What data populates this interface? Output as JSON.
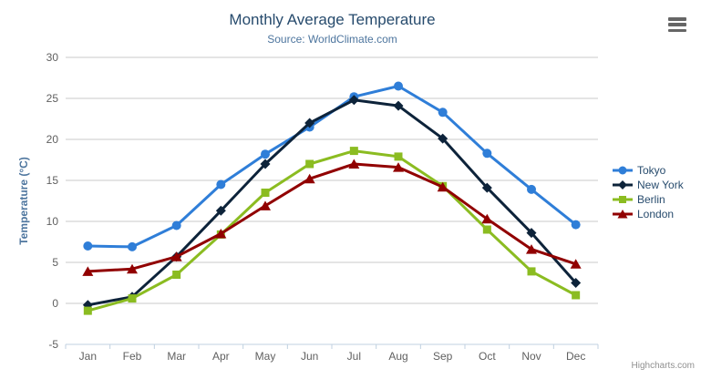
{
  "header": {
    "title": "Monthly Average Temperature",
    "subtitle": "Source: WorldClimate.com"
  },
  "credits": "Highcharts.com",
  "colors": {
    "title": "#274b6d",
    "subtitle": "#4d759e",
    "axis_title": "#4d759e",
    "tick_label": "#606060",
    "grid_line": "#C9C9C9",
    "axis_line": "#C0D0E0",
    "legend_text": "#274b6d",
    "credits_text": "#909090",
    "burger_icon": "#666666"
  },
  "chart_data": {
    "type": "line",
    "title": "Monthly Average Temperature",
    "subtitle": "Source: WorldClimate.com",
    "xlabel": "",
    "ylabel": "Temperature (°C)",
    "categories": [
      "Jan",
      "Feb",
      "Mar",
      "Apr",
      "May",
      "Jun",
      "Jul",
      "Aug",
      "Sep",
      "Oct",
      "Nov",
      "Dec"
    ],
    "series": [
      {
        "name": "Tokyo",
        "color": "#2f7ed8",
        "symbol": "circle",
        "values": [
          7.0,
          6.9,
          9.5,
          14.5,
          18.2,
          21.5,
          25.2,
          26.5,
          23.3,
          18.3,
          13.9,
          9.6
        ]
      },
      {
        "name": "New York",
        "color": "#0d233a",
        "symbol": "diamond",
        "values": [
          -0.2,
          0.8,
          5.7,
          11.3,
          17.0,
          22.0,
          24.8,
          24.1,
          20.1,
          14.1,
          8.6,
          2.5
        ]
      },
      {
        "name": "Berlin",
        "color": "#8bbc21",
        "symbol": "square",
        "values": [
          -0.9,
          0.6,
          3.5,
          8.4,
          13.5,
          17.0,
          18.6,
          17.9,
          14.3,
          9.0,
          3.9,
          1.0
        ]
      },
      {
        "name": "London",
        "color": "#910000",
        "symbol": "triangle",
        "values": [
          3.9,
          4.2,
          5.7,
          8.5,
          11.9,
          15.2,
          17.0,
          16.6,
          14.2,
          10.3,
          6.6,
          4.8
        ]
      }
    ],
    "ylim": [
      -5,
      30
    ],
    "ytick_step": 5,
    "grid": true,
    "legend_position": "right"
  }
}
